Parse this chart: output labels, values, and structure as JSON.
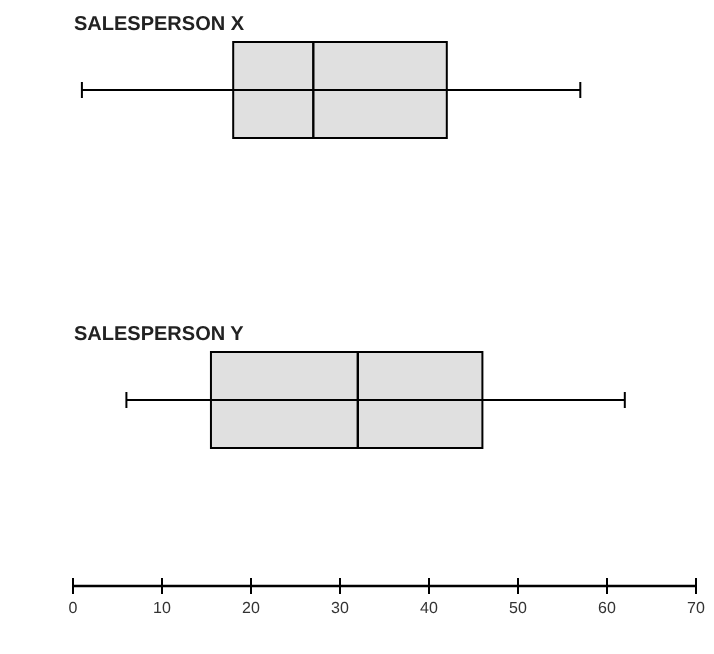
{
  "chart_data": {
    "type": "box",
    "orientation": "horizontal",
    "categories": [
      "SALESPERSON X",
      "SALESPERSON Y"
    ],
    "boxes": [
      {
        "low": 1,
        "q1": 18,
        "median": 27,
        "q3": 42,
        "high": 57
      },
      {
        "low": 6,
        "q1": 15.5,
        "median": 32,
        "q3": 46,
        "high": 62
      }
    ],
    "color": "#e0e0e0",
    "xlim": [
      0,
      70
    ],
    "xticks": [
      0,
      10,
      20,
      30,
      40,
      50,
      60,
      70
    ],
    "grid": false
  }
}
